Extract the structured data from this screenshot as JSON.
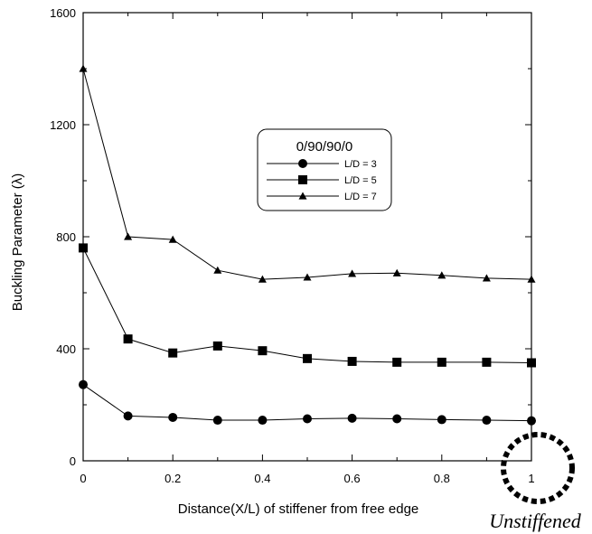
{
  "chart_data": {
    "type": "line",
    "title": "",
    "xlabel": "Distance(X/L) of stiffener from free edge",
    "ylabel": "Buckling Parameter (λ)",
    "xlim": [
      0,
      1
    ],
    "ylim": [
      0,
      1600
    ],
    "x_ticks": [
      0,
      0.2,
      0.4,
      0.6,
      0.8,
      1
    ],
    "x_tick_labels": [
      "0",
      "0.2",
      "0.4",
      "0.6",
      "0.8",
      "1"
    ],
    "y_ticks": [
      0,
      400,
      800,
      1200,
      1600
    ],
    "y_tick_labels": [
      "0",
      "400",
      "800",
      "1200",
      "1600"
    ],
    "x": [
      0,
      0.1,
      0.2,
      0.3,
      0.4,
      0.5,
      0.6,
      0.7,
      0.8,
      0.9,
      1.0
    ],
    "series": [
      {
        "name": "L/D = 3",
        "marker": "circle",
        "values": [
          272,
          160,
          155,
          145,
          145,
          150,
          152,
          150,
          147,
          145,
          143
        ]
      },
      {
        "name": "L/D = 5",
        "marker": "square",
        "values": [
          760,
          435,
          385,
          410,
          393,
          365,
          355,
          352,
          352,
          352,
          350
        ]
      },
      {
        "name": "L/D = 7",
        "marker": "triangle",
        "values": [
          1400,
          800,
          790,
          680,
          648,
          655,
          668,
          670,
          662,
          652,
          648
        ]
      }
    ],
    "legend": {
      "title": "0/90/90/0",
      "placement": "center-right"
    },
    "grid": false,
    "annotations": [
      {
        "text": "Unstiffened",
        "points_to_x": 1
      }
    ]
  }
}
